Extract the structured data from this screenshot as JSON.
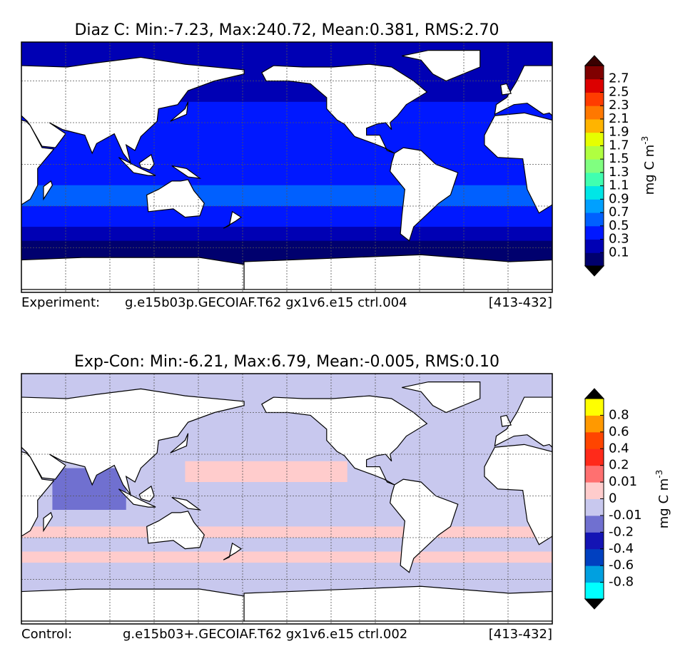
{
  "panels": [
    {
      "title": "Diaz C: Min:-7.23, Max:240.72, Mean:0.381, RMS:2.70",
      "footer": {
        "label": "Experiment:",
        "case": "g.e15b03p.GECOIAF.T62 gx1v6.e15 ctrl.004",
        "range": "[413-432]"
      },
      "colorbar": {
        "label": "mg C m",
        "label_sup": "-3",
        "ticks": [
          0.1,
          0.3,
          0.5,
          0.7,
          0.9,
          1.1,
          1.3,
          1.5,
          1.7,
          1.9,
          2.1,
          2.3,
          2.5,
          2.7
        ],
        "colors": [
          "#00006e",
          "#0000b4",
          "#0018ff",
          "#0060ff",
          "#00a0ff",
          "#00e6e6",
          "#40ffb0",
          "#80ff80",
          "#b0ff40",
          "#e6ff00",
          "#ffb400",
          "#ff7800",
          "#ff3c00",
          "#dc0000",
          "#800000"
        ],
        "under_color": "#000000",
        "over_color": "#3a0000"
      }
    },
    {
      "title": "Exp-Con: Min:-6.21, Max:6.79, Mean:-0.005, RMS:0.10",
      "footer": {
        "label": "Control:",
        "case": "g.e15b03+.GECOIAF.T62 gx1v6.e15 ctrl.002",
        "range": "[413-432]"
      },
      "colorbar": {
        "label": "mg C m",
        "label_sup": "-3",
        "ticks": [
          -0.8,
          -0.6,
          -0.4,
          -0.2,
          -0.01,
          0,
          0.01,
          0.2,
          0.4,
          0.6,
          0.8
        ],
        "colors": [
          "#00ffff",
          "#00a0e0",
          "#0040c0",
          "#1414b4",
          "#7070d0",
          "#c8c8ee",
          "#ffcccc",
          "#ff7070",
          "#ff2a1a",
          "#ff4500",
          "#ff9900",
          "#ffff00"
        ],
        "under_color": "#000000",
        "over_color": "#000000"
      }
    }
  ]
}
